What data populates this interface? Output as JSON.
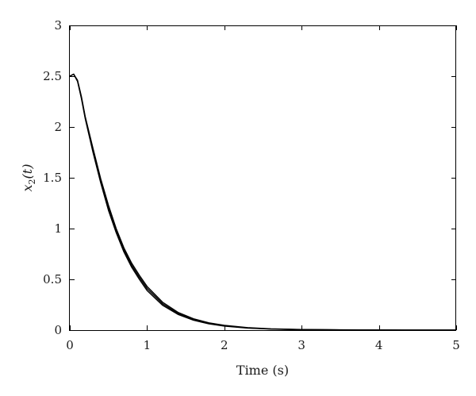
{
  "chart_data": {
    "type": "line",
    "title": "",
    "xlabel": "Time (s)",
    "ylabel": {
      "symbol": "x",
      "subscript": "2",
      "argument": "(t)"
    },
    "xlim": [
      0,
      5
    ],
    "ylim": [
      0,
      3
    ],
    "x_ticks": [
      0,
      1,
      2,
      3,
      4,
      5
    ],
    "y_ticks": [
      0,
      0.5,
      1,
      1.5,
      2,
      2.5,
      3
    ],
    "grid": false,
    "legend": "none",
    "line_color": "#000000",
    "series": [
      {
        "x": [
          0,
          0.05,
          0.1,
          0.15,
          0.2,
          0.3,
          0.4,
          0.5,
          0.6,
          0.7,
          0.8,
          0.9,
          1.0,
          1.2,
          1.4,
          1.6,
          1.8,
          2.0,
          2.3,
          2.6,
          3.0,
          3.5,
          4.0,
          4.5,
          5.0
        ],
        "y": [
          2.5,
          2.52,
          2.45,
          2.28,
          2.08,
          1.75,
          1.45,
          1.18,
          0.96,
          0.77,
          0.62,
          0.5,
          0.39,
          0.245,
          0.155,
          0.098,
          0.062,
          0.04,
          0.02,
          0.01,
          0.004,
          0.002,
          0.001,
          0.0,
          0.0
        ]
      },
      {
        "x": [
          0,
          0.05,
          0.1,
          0.15,
          0.2,
          0.3,
          0.4,
          0.5,
          0.6,
          0.7,
          0.8,
          0.9,
          1.0,
          1.2,
          1.4,
          1.6,
          1.8,
          2.0,
          2.3,
          2.6,
          3.0,
          3.5,
          4.0,
          4.5,
          5.0
        ],
        "y": [
          2.5,
          2.52,
          2.45,
          2.29,
          2.09,
          1.77,
          1.47,
          1.2,
          0.98,
          0.79,
          0.64,
          0.52,
          0.41,
          0.26,
          0.165,
          0.105,
          0.067,
          0.043,
          0.022,
          0.011,
          0.005,
          0.002,
          0.001,
          0.0,
          0.0
        ]
      },
      {
        "x": [
          0,
          0.05,
          0.1,
          0.15,
          0.2,
          0.3,
          0.4,
          0.5,
          0.6,
          0.7,
          0.8,
          0.9,
          1.0,
          1.2,
          1.4,
          1.6,
          1.8,
          2.0,
          2.3,
          2.6,
          3.0,
          3.5,
          4.0,
          4.5,
          5.0
        ],
        "y": [
          2.5,
          2.52,
          2.46,
          2.3,
          2.1,
          1.79,
          1.49,
          1.23,
          1.0,
          0.81,
          0.66,
          0.54,
          0.43,
          0.275,
          0.175,
          0.112,
          0.072,
          0.047,
          0.025,
          0.013,
          0.006,
          0.003,
          0.001,
          0.0,
          0.0
        ]
      }
    ]
  }
}
